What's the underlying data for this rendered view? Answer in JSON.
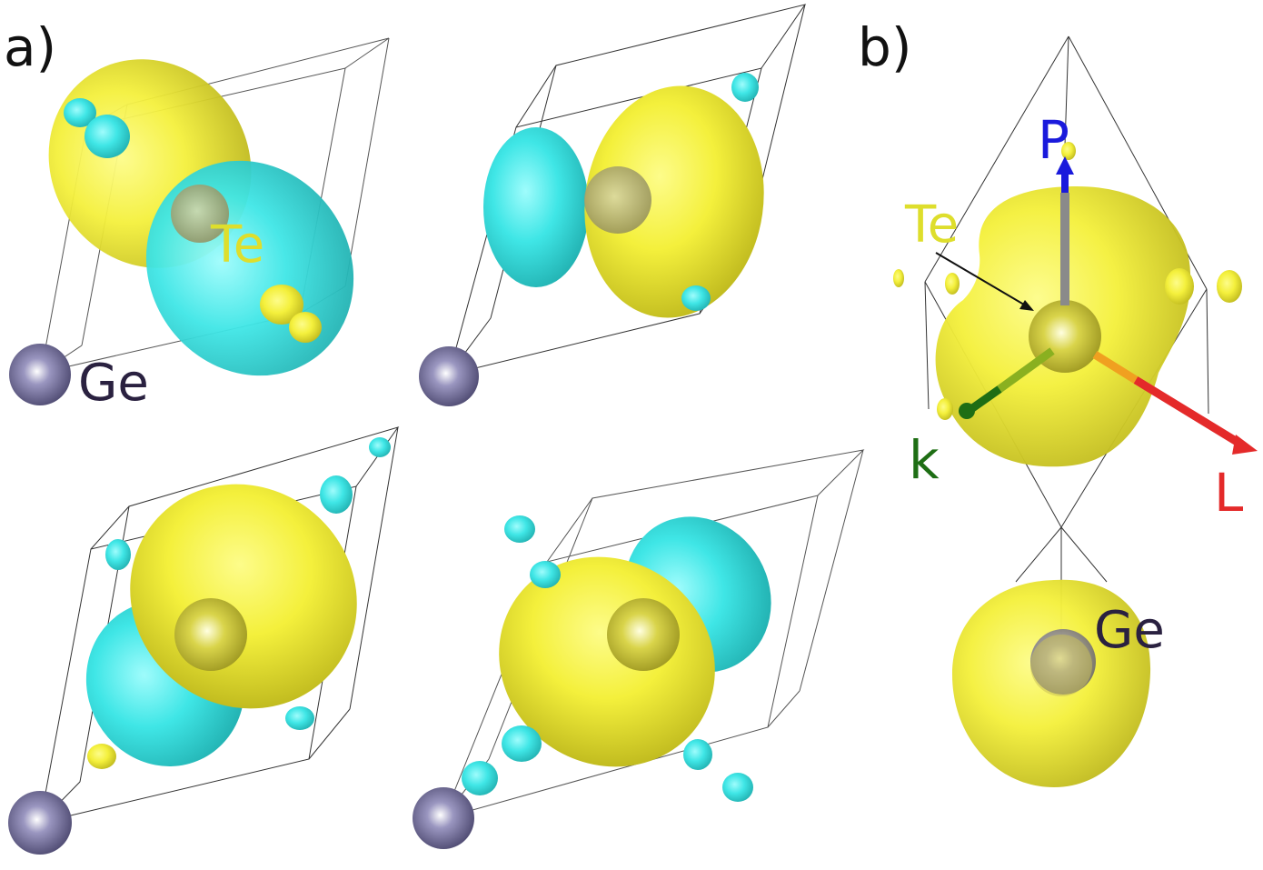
{
  "panel_a": {
    "label": "a)",
    "te_label": "Te",
    "ge_label": "Ge"
  },
  "panel_b": {
    "label": "b)",
    "te_label": "Te",
    "ge_label": "Ge",
    "axes": {
      "p_label": "P",
      "k_label": "k",
      "l_label": "L"
    }
  },
  "colors": {
    "yellow_lobe": "#f4f03c",
    "cyan_lobe": "#3fe6e6",
    "ge_atom": "#6e6a94",
    "te_label": "#dede2c",
    "ge_label": "#2a2140",
    "axis_p": "#1a1adc",
    "axis_k": "#1e6e14",
    "axis_l": "#e42a2a",
    "axis_stem": "#8a8a8a"
  }
}
